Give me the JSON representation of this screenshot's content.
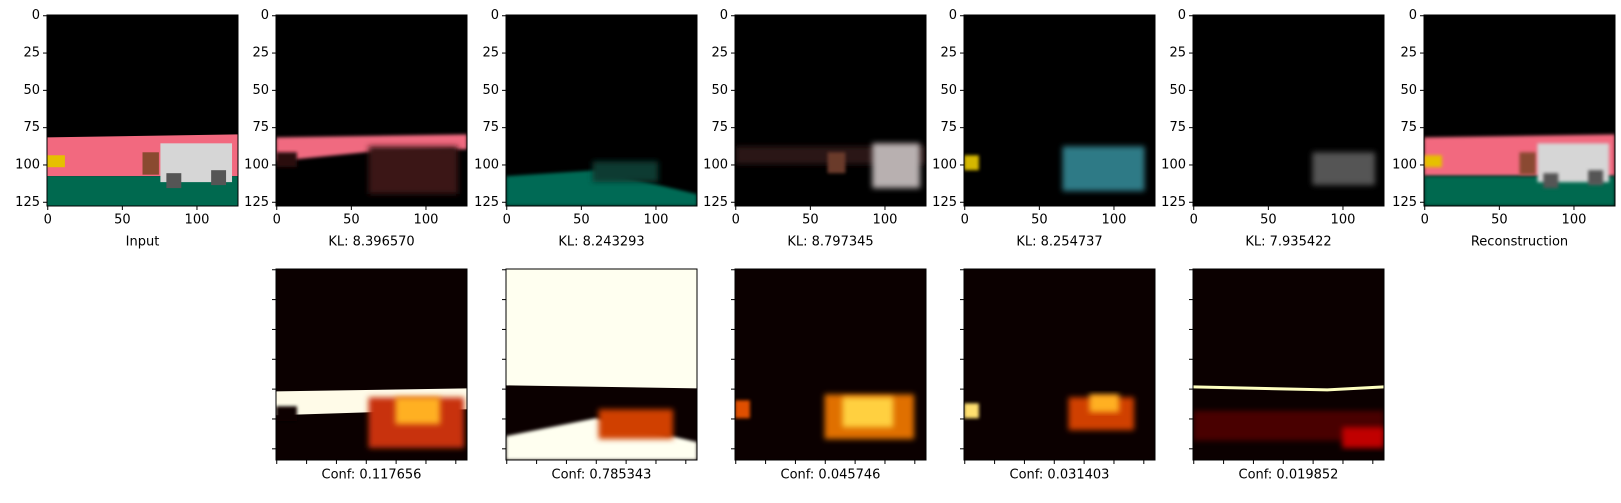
{
  "chart_data": [
    {
      "type": "image",
      "xlabel": "Input",
      "xlim": [
        -0.5,
        127.5
      ],
      "ylim": [
        127.5,
        -0.5
      ],
      "xticks": [
        0,
        50,
        100
      ],
      "yticks": [
        0,
        25,
        50,
        75,
        100,
        125
      ]
    },
    {
      "type": "image",
      "xlabel": "KL: 8.396570",
      "xlim": [
        -0.5,
        127.5
      ],
      "ylim": [
        127.5,
        -0.5
      ],
      "xticks": [
        0,
        50,
        100
      ],
      "yticks": [
        0,
        25,
        50,
        75,
        100,
        125
      ]
    },
    {
      "type": "image",
      "xlabel": "KL: 8.243293",
      "xlim": [
        -0.5,
        127.5
      ],
      "ylim": [
        127.5,
        -0.5
      ],
      "xticks": [
        0,
        50,
        100
      ],
      "yticks": [
        0,
        25,
        50,
        75,
        100,
        125
      ]
    },
    {
      "type": "image",
      "xlabel": "KL: 8.797345",
      "xlim": [
        -0.5,
        127.5
      ],
      "ylim": [
        127.5,
        -0.5
      ],
      "xticks": [
        0,
        50,
        100
      ],
      "yticks": [
        0,
        25,
        50,
        75,
        100,
        125
      ]
    },
    {
      "type": "image",
      "xlabel": "KL: 8.254737",
      "xlim": [
        -0.5,
        127.5
      ],
      "ylim": [
        127.5,
        -0.5
      ],
      "xticks": [
        0,
        50,
        100
      ],
      "yticks": [
        0,
        25,
        50,
        75,
        100,
        125
      ]
    },
    {
      "type": "image",
      "xlabel": "KL: 7.935422",
      "xlim": [
        -0.5,
        127.5
      ],
      "ylim": [
        127.5,
        -0.5
      ],
      "xticks": [
        0,
        50,
        100
      ],
      "yticks": [
        0,
        25,
        50,
        75,
        100,
        125
      ]
    },
    {
      "type": "image",
      "xlabel": "Reconstruction",
      "xlim": [
        -0.5,
        127.5
      ],
      "ylim": [
        127.5,
        -0.5
      ],
      "xticks": [
        0,
        50,
        100
      ],
      "yticks": [
        0,
        25,
        50,
        75,
        100,
        125
      ]
    },
    {
      "type": "heatmap",
      "xlabel": "Conf: 0.117656",
      "xlim": [
        -0.5,
        127.5
      ],
      "ylim": [
        127.5,
        -0.5
      ],
      "xticks": [
        0,
        20,
        40,
        60,
        80,
        100,
        120
      ],
      "yticks": [
        0,
        20,
        40,
        60,
        80,
        100,
        120
      ],
      "tick_labels": false
    },
    {
      "type": "heatmap",
      "xlabel": "Conf: 0.785343",
      "xlim": [
        -0.5,
        127.5
      ],
      "ylim": [
        127.5,
        -0.5
      ],
      "xticks": [
        0,
        20,
        40,
        60,
        80,
        100,
        120
      ],
      "yticks": [
        0,
        20,
        40,
        60,
        80,
        100,
        120
      ],
      "tick_labels": false
    },
    {
      "type": "heatmap",
      "xlabel": "Conf: 0.045746",
      "xlim": [
        -0.5,
        127.5
      ],
      "ylim": [
        127.5,
        -0.5
      ],
      "xticks": [
        0,
        20,
        40,
        60,
        80,
        100,
        120
      ],
      "yticks": [
        0,
        20,
        40,
        60,
        80,
        100,
        120
      ],
      "tick_labels": false
    },
    {
      "type": "heatmap",
      "xlabel": "Conf: 0.031403",
      "xlim": [
        -0.5,
        127.5
      ],
      "ylim": [
        127.5,
        -0.5
      ],
      "xticks": [
        0,
        20,
        40,
        60,
        80,
        100,
        120
      ],
      "yticks": [
        0,
        20,
        40,
        60,
        80,
        100,
        120
      ],
      "tick_labels": false
    },
    {
      "type": "heatmap",
      "xlabel": "Conf: 0.019852",
      "xlim": [
        -0.5,
        127.5
      ],
      "ylim": [
        127.5,
        -0.5
      ],
      "xticks": [
        0,
        20,
        40,
        60,
        80,
        100,
        120
      ],
      "yticks": [
        0,
        20,
        40,
        60,
        80,
        100,
        120
      ],
      "tick_labels": false
    }
  ]
}
